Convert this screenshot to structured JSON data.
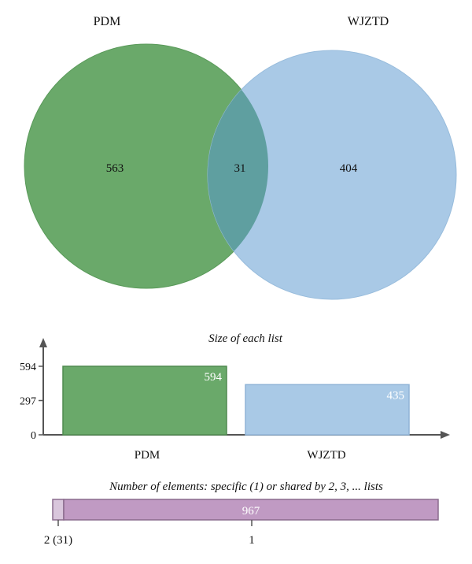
{
  "chart_data": [
    {
      "type": "venn",
      "sets": [
        {
          "name": "PDM",
          "only": 563,
          "color": "#6aa96a"
        },
        {
          "name": "WJZTD",
          "only": 404,
          "color": "#a9c9e6"
        }
      ],
      "intersection": 31,
      "overlap_color": "#5f9fa0"
    },
    {
      "type": "bar",
      "title": "Size of each list",
      "categories": [
        "PDM",
        "WJZTD"
      ],
      "values": [
        594,
        435
      ],
      "yticks": [
        0,
        297,
        594
      ],
      "ylim": [
        0,
        594
      ],
      "colors": [
        "#6aa96a",
        "#a9c9e6"
      ]
    },
    {
      "type": "bar",
      "orientation": "horizontal-stacked",
      "title": "Number of elements: specific (1) or shared by 2, 3, ... lists",
      "segments": [
        {
          "label": "2 (31)",
          "value": 31,
          "color": "#d9c6dc"
        },
        {
          "label": "1",
          "value": 967,
          "value_label": "967",
          "color": "#c09ac3"
        }
      ]
    }
  ]
}
